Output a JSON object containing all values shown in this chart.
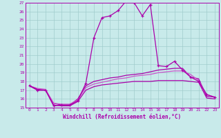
{
  "xlabel": "Windchill (Refroidissement éolien,°C)",
  "xlim": [
    -0.5,
    23.5
  ],
  "ylim": [
    15,
    27
  ],
  "yticks": [
    15,
    16,
    17,
    18,
    19,
    20,
    21,
    22,
    23,
    24,
    25,
    26,
    27
  ],
  "xticks": [
    0,
    1,
    2,
    3,
    4,
    5,
    6,
    7,
    8,
    9,
    10,
    11,
    12,
    13,
    14,
    15,
    16,
    17,
    18,
    19,
    20,
    21,
    22,
    23
  ],
  "background_color": "#c8eaea",
  "grid_color": "#a0cccc",
  "line_color": "#aa00aa",
  "line_color_light": "#cc55cc",
  "series": [
    {
      "x": [
        0,
        1,
        2,
        3,
        4,
        5,
        6,
        7,
        8,
        9,
        10,
        11,
        12,
        13,
        14,
        15,
        16,
        17,
        18,
        19,
        20,
        21,
        22,
        23
      ],
      "y": [
        17.5,
        17.0,
        17.0,
        15.2,
        15.3,
        15.3,
        15.8,
        17.8,
        23.0,
        25.3,
        25.5,
        26.1,
        27.2,
        27.0,
        25.5,
        26.8,
        19.8,
        19.7,
        20.3,
        19.3,
        18.5,
        18.0,
        16.5,
        16.2
      ],
      "marker": "+",
      "color": "#aa00aa",
      "lw": 0.9
    },
    {
      "x": [
        0,
        1,
        2,
        3,
        4,
        5,
        6,
        7,
        8,
        9,
        10,
        11,
        12,
        13,
        14,
        15,
        16,
        17,
        18,
        19,
        20,
        21,
        22,
        23
      ],
      "y": [
        17.5,
        17.0,
        17.0,
        15.5,
        15.3,
        15.3,
        16.0,
        17.5,
        18.0,
        18.2,
        18.4,
        18.5,
        18.7,
        18.8,
        18.9,
        19.1,
        19.3,
        19.4,
        19.5,
        19.5,
        18.5,
        18.3,
        16.3,
        16.2
      ],
      "marker": null,
      "color": "#aa00aa",
      "lw": 0.9
    },
    {
      "x": [
        0,
        1,
        2,
        3,
        4,
        5,
        6,
        7,
        8,
        9,
        10,
        11,
        12,
        13,
        14,
        15,
        16,
        17,
        18,
        19,
        20,
        21,
        22,
        23
      ],
      "y": [
        17.5,
        17.2,
        17.1,
        15.5,
        15.4,
        15.4,
        15.9,
        17.3,
        17.7,
        17.9,
        18.1,
        18.3,
        18.4,
        18.6,
        18.7,
        18.8,
        19.0,
        19.1,
        19.2,
        19.2,
        18.8,
        18.1,
        16.5,
        16.2
      ],
      "marker": null,
      "color": "#cc55cc",
      "lw": 0.9
    },
    {
      "x": [
        0,
        1,
        2,
        3,
        4,
        5,
        6,
        7,
        8,
        9,
        10,
        11,
        12,
        13,
        14,
        15,
        16,
        17,
        18,
        19,
        20,
        21,
        22,
        23
      ],
      "y": [
        17.5,
        17.1,
        17.0,
        15.3,
        15.2,
        15.2,
        15.7,
        17.0,
        17.4,
        17.6,
        17.7,
        17.8,
        17.9,
        18.0,
        18.0,
        18.0,
        18.1,
        18.1,
        18.1,
        18.1,
        18.0,
        17.9,
        16.1,
        16.0
      ],
      "marker": null,
      "color": "#aa00aa",
      "lw": 0.9
    }
  ]
}
